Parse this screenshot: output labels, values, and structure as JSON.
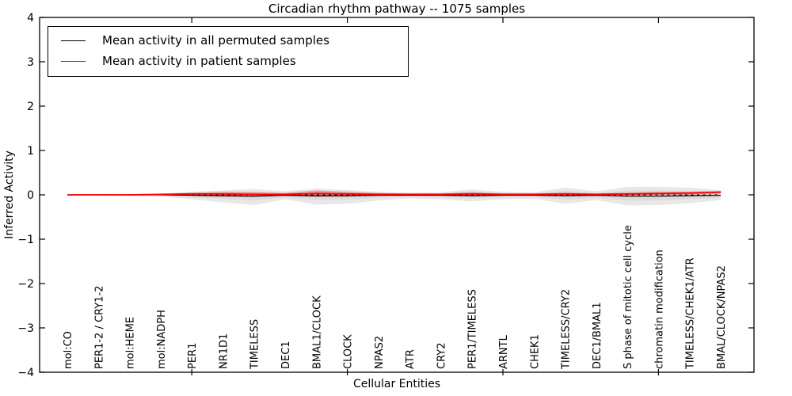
{
  "chart_data": {
    "type": "line",
    "title": "Circadian rhythm pathway -- 1075 samples",
    "xlabel": "Cellular Entities",
    "ylabel": "Inferred Activity",
    "ylim": [
      -4,
      4
    ],
    "yticks": [
      -4,
      -3,
      -2,
      -1,
      0,
      1,
      2,
      3,
      4
    ],
    "ytick_labels": [
      "−4",
      "−3",
      "−2",
      "−1",
      "0",
      "1",
      "2",
      "3",
      "4"
    ],
    "x_major_tick_indices": [
      4,
      9,
      14,
      19
    ],
    "grid": false,
    "legend_position": "upper left",
    "categories": [
      "mol:CO",
      "PER1-2 / CRY1-2",
      "mol:HEME",
      "mol:NADPH",
      "PER1",
      "NR1D1",
      "TIMELESS",
      "DEC1",
      "BMAL1/CLOCK",
      "CLOCK",
      "NPAS2",
      "ATR",
      "CRY2",
      "PER1/TIMELESS",
      "ARNTL",
      "CHEK1",
      "TIMELESS/CRY2",
      "DEC1/BMAL1",
      "S phase of mitotic cell cycle",
      "chromatin modification",
      "TIMELESS/CHEK1/ATR",
      "BMAL/CLOCK/NPAS2"
    ],
    "series": [
      {
        "name": "Mean activity in all permuted samples",
        "color": "#000000",
        "line_width": 1.2,
        "values": [
          0.0,
          0.0,
          0.0,
          0.0,
          -0.01,
          -0.02,
          -0.03,
          -0.01,
          -0.02,
          -0.02,
          -0.01,
          -0.01,
          -0.01,
          -0.02,
          -0.01,
          -0.01,
          -0.02,
          -0.01,
          -0.03,
          -0.03,
          -0.02,
          -0.01
        ]
      },
      {
        "name": "Mean activity in patient samples",
        "color": "#ff0000",
        "line_width": 1.8,
        "values": [
          0.0,
          0.0,
          0.0,
          0.01,
          0.02,
          0.02,
          0.01,
          0.01,
          0.03,
          0.02,
          0.01,
          0.01,
          0.01,
          0.02,
          0.01,
          0.01,
          0.02,
          0.01,
          0.02,
          0.03,
          0.04,
          0.06
        ]
      }
    ],
    "bands": [
      {
        "name": "permuted-range-outer",
        "color": "#e8e8e8",
        "top": [
          0.02,
          0.02,
          0.02,
          0.03,
          0.07,
          0.1,
          0.13,
          0.08,
          0.14,
          0.11,
          0.07,
          0.05,
          0.06,
          0.12,
          0.07,
          0.06,
          0.16,
          0.08,
          0.18,
          0.18,
          0.16,
          0.11
        ],
        "bottom": [
          -0.02,
          -0.02,
          -0.03,
          -0.04,
          -0.1,
          -0.17,
          -0.23,
          -0.1,
          -0.22,
          -0.2,
          -0.13,
          -0.08,
          -0.1,
          -0.15,
          -0.1,
          -0.09,
          -0.2,
          -0.12,
          -0.24,
          -0.23,
          -0.19,
          -0.12
        ]
      },
      {
        "name": "permuted-range-inner",
        "color": "#dcdcdc",
        "top": [
          0.01,
          0.01,
          0.01,
          0.02,
          0.04,
          0.06,
          0.07,
          0.04,
          0.08,
          0.06,
          0.04,
          0.03,
          0.03,
          0.07,
          0.04,
          0.03,
          0.09,
          0.04,
          0.1,
          0.1,
          0.09,
          0.06
        ],
        "bottom": [
          -0.01,
          -0.01,
          -0.02,
          -0.02,
          -0.06,
          -0.09,
          -0.13,
          -0.06,
          -0.12,
          -0.11,
          -0.07,
          -0.04,
          -0.06,
          -0.08,
          -0.06,
          -0.05,
          -0.11,
          -0.07,
          -0.13,
          -0.13,
          -0.1,
          -0.07
        ]
      },
      {
        "name": "patient-range",
        "color": "rgba(255,0,0,0.30)",
        "top": [
          0.01,
          0.01,
          0.01,
          0.02,
          0.05,
          0.07,
          0.06,
          0.04,
          0.1,
          0.07,
          0.04,
          0.03,
          0.03,
          0.06,
          0.03,
          0.03,
          0.05,
          0.03,
          0.05,
          0.06,
          0.07,
          0.09
        ],
        "bottom": [
          -0.01,
          -0.01,
          -0.01,
          -0.01,
          -0.02,
          -0.04,
          -0.05,
          -0.02,
          -0.05,
          -0.04,
          -0.02,
          -0.02,
          -0.02,
          -0.03,
          -0.01,
          -0.01,
          -0.02,
          -0.01,
          -0.02,
          -0.01,
          0.0,
          0.03
        ]
      }
    ],
    "zero_line": {
      "style": "dashed",
      "color": "#000000",
      "y": 0
    },
    "legend": [
      {
        "label": "Mean activity in all permuted samples",
        "color": "#000000"
      },
      {
        "label": "Mean activity in patient samples",
        "color": "#ff0000"
      }
    ]
  }
}
